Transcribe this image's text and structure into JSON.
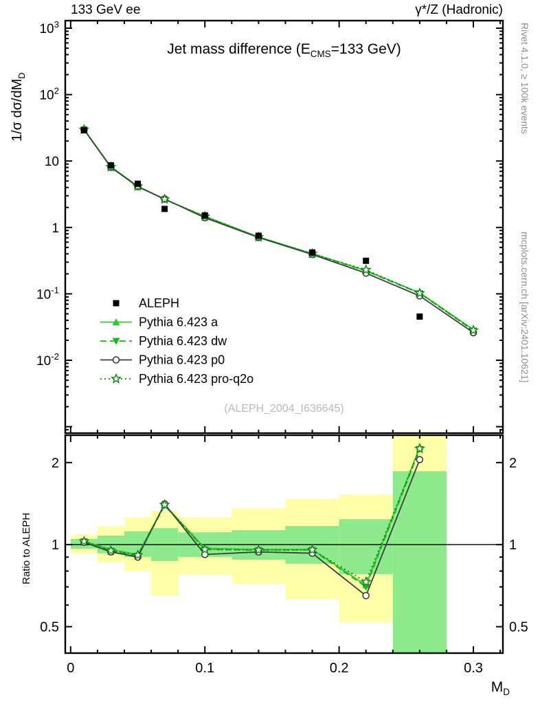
{
  "header": {
    "left": "133 GeV ee",
    "right": "γ*/Z (Hadronic)"
  },
  "plot_title": {
    "pre": "Jet mass difference (E",
    "sub": "CMS",
    "post": "=133 GeV)"
  },
  "watermark": "(ALEPH_2004_I636645)",
  "side_notes": {
    "top": "Rivet 4.1.0, ≥ 100k events",
    "bottom": "mcplots.cern.ch [arXiv:2401.10621]"
  },
  "axes": {
    "y_label": {
      "pre": "1/σ  dσ/dM",
      "sub": "D"
    },
    "x_label": {
      "pre": "M",
      "sub": "D"
    },
    "ratio_label": "Ratio to ALEPH"
  },
  "chart_data": {
    "type": "line",
    "x": [
      0.01,
      0.03,
      0.05,
      0.07,
      0.1,
      0.14,
      0.18,
      0.22,
      0.26,
      0.3
    ],
    "xlim": [
      -0.004,
      0.322
    ],
    "ylim_main": [
      0.0008,
      1300
    ],
    "ylim_ratio": [
      0.4,
      2.52
    ],
    "yscale": "log",
    "xticks": {
      "major": [
        0,
        0.1,
        0.2,
        0.3
      ],
      "labels": [
        "0",
        "0.1",
        "0.2",
        "0.3"
      ],
      "minor_step": 0.02
    },
    "yticks_main": [
      {
        "v": 0.01,
        "label": "10^{-2}"
      },
      {
        "v": 0.1,
        "label": "10^{-1}"
      },
      {
        "v": 1,
        "label": "1"
      },
      {
        "v": 10,
        "label": "10"
      },
      {
        "v": 100,
        "label": "10^{2}"
      },
      {
        "v": 1000,
        "label": "10^{3}"
      }
    ],
    "yticks_ratio": [
      {
        "v": 0.5,
        "label": "0.5"
      },
      {
        "v": 1,
        "label": "1"
      },
      {
        "v": 2,
        "label": "2"
      }
    ],
    "series": [
      {
        "name": "ALEPH",
        "type": "data",
        "color": "#000000",
        "marker": "square-filled",
        "line": "none",
        "values": [
          29,
          8.6,
          4.55,
          1.9,
          1.52,
          0.75,
          0.42,
          0.315,
          0.0455,
          null
        ]
      },
      {
        "name": "Pythia 6.423 a",
        "color": "#30c830",
        "marker": "triangle-up-filled",
        "line": "solid",
        "values": [
          29.9,
          8.2,
          4.18,
          2.66,
          1.47,
          0.72,
          0.405,
          0.224,
          0.104,
          0.029
        ],
        "ratio": [
          1.03,
          0.96,
          0.92,
          1.4,
          0.97,
          0.96,
          0.96,
          0.71,
          2.28,
          null
        ]
      },
      {
        "name": "Pythia 6.423 dw",
        "color": "#1eb41e",
        "marker": "triangle-down-filled",
        "line": "dashed",
        "values": [
          29.8,
          8.15,
          4.15,
          2.64,
          1.46,
          0.715,
          0.402,
          0.22,
          0.102,
          0.028
        ],
        "ratio": [
          1.028,
          0.95,
          0.91,
          1.39,
          0.96,
          0.955,
          0.957,
          0.7,
          2.24,
          null
        ]
      },
      {
        "name": "Pythia 6.423 p0",
        "color": "#3c3c3c",
        "marker": "circle-open",
        "line": "solid",
        "values": [
          29.6,
          8.05,
          4.1,
          2.68,
          1.4,
          0.705,
          0.391,
          0.205,
          0.0932,
          0.026
        ],
        "ratio": [
          1.02,
          0.94,
          0.9,
          1.41,
          0.92,
          0.94,
          0.93,
          0.65,
          2.05,
          null
        ]
      },
      {
        "name": "Pythia 6.423 pro-q2o",
        "color": "#0f820f",
        "marker": "star-open",
        "line": "dotted",
        "values": [
          29.8,
          8.15,
          4.17,
          2.66,
          1.46,
          0.715,
          0.402,
          0.23,
          0.1025,
          0.0283
        ],
        "ratio": [
          1.028,
          0.95,
          0.915,
          1.4,
          0.96,
          0.955,
          0.957,
          0.73,
          2.25,
          null
        ]
      }
    ],
    "ratio_reference": 1,
    "bands": [
      {
        "x0": 0.0,
        "x1": 0.02,
        "yellow": [
          0.93,
          1.09
        ],
        "green": [
          0.965,
          1.05
        ]
      },
      {
        "x0": 0.02,
        "x1": 0.04,
        "yellow": [
          0.86,
          1.17
        ],
        "green": [
          0.93,
          1.08
        ]
      },
      {
        "x0": 0.04,
        "x1": 0.06,
        "yellow": [
          0.8,
          1.26
        ],
        "green": [
          0.9,
          1.12
        ]
      },
      {
        "x0": 0.06,
        "x1": 0.08,
        "yellow": [
          0.65,
          1.33
        ],
        "green": [
          0.87,
          1.15
        ]
      },
      {
        "x0": 0.08,
        "x1": 0.12,
        "yellow": [
          0.78,
          1.26
        ],
        "green": [
          0.9,
          1.11
        ]
      },
      {
        "x0": 0.12,
        "x1": 0.16,
        "yellow": [
          0.72,
          1.36
        ],
        "green": [
          0.88,
          1.13
        ]
      },
      {
        "x0": 0.16,
        "x1": 0.2,
        "yellow": [
          0.63,
          1.47
        ],
        "green": [
          0.85,
          1.17
        ]
      },
      {
        "x0": 0.2,
        "x1": 0.24,
        "yellow": [
          0.52,
          1.53
        ],
        "green": [
          0.78,
          1.24
        ]
      },
      {
        "x0": 0.24,
        "x1": 0.28,
        "yellow": [
          0.4,
          2.52
        ],
        "green": [
          0.4,
          1.86
        ]
      }
    ],
    "band_colors": {
      "yellow": "#ffffa8",
      "green": "#8ce98c"
    }
  }
}
